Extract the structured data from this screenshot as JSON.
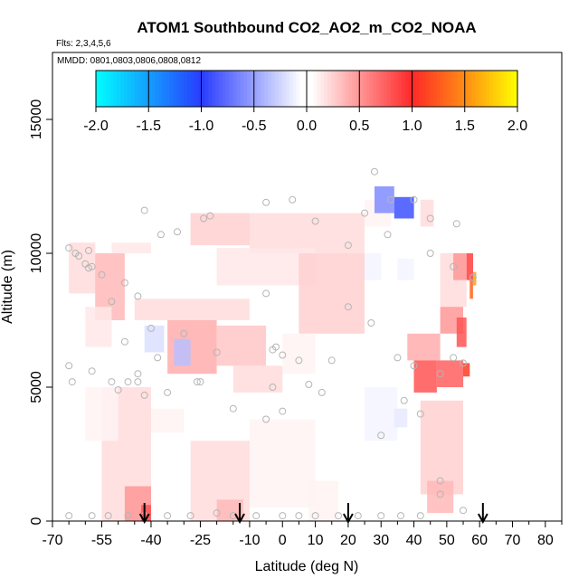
{
  "chart_data": {
    "type": "heatmap",
    "title": "ATOM1 Southbound CO2_AO2_m_CO2_NOAA",
    "flights_label": "Flts: 2,3,4,5,6",
    "mmdd_label": "MMDD: 0801,0803,0806,0808,0812",
    "xlabel": "Latitude (deg N)",
    "ylabel": "Altitude (m)",
    "xlim": [
      -70,
      85
    ],
    "ylim": [
      0,
      17500
    ],
    "x_ticks": [
      -70,
      -55,
      -40,
      -25,
      -10,
      0,
      10,
      20,
      30,
      40,
      50,
      60,
      70,
      80
    ],
    "y_ticks": [
      0,
      5000,
      10000,
      15000
    ],
    "colorbar": {
      "range": [
        -2.0,
        2.0
      ],
      "ticks": [
        "-2.0",
        "-1.5",
        "-1.0",
        "-0.5",
        "0.0",
        "0.5",
        "1.0",
        "1.5",
        "2.0"
      ]
    },
    "arrows_latitude": [
      -42,
      -13,
      20,
      61
    ],
    "cells": [
      {
        "lat": [
          -65,
          -57
        ],
        "alt": [
          8500,
          10400
        ],
        "v": 0.2
      },
      {
        "lat": [
          -57,
          -48
        ],
        "alt": [
          7500,
          10000
        ],
        "v": 0.35
      },
      {
        "lat": [
          -60,
          -52
        ],
        "alt": [
          6500,
          8000
        ],
        "v": 0.15
      },
      {
        "lat": [
          -52,
          -40
        ],
        "alt": [
          10000,
          10400
        ],
        "v": 0.15
      },
      {
        "lat": [
          -40,
          -25
        ],
        "alt": [
          9800,
          10400
        ],
        "v": 0.05
      },
      {
        "lat": [
          -28,
          -10
        ],
        "alt": [
          10300,
          11500
        ],
        "v": 0.25
      },
      {
        "lat": [
          -10,
          25
        ],
        "alt": [
          10000,
          11500
        ],
        "v": 0.2
      },
      {
        "lat": [
          25,
          33
        ],
        "alt": [
          11000,
          12000
        ],
        "v": 0.1
      },
      {
        "lat": [
          -20,
          10
        ],
        "alt": [
          8800,
          10200
        ],
        "v": 0.15
      },
      {
        "lat": [
          5,
          25
        ],
        "alt": [
          7000,
          10000
        ],
        "v": 0.25
      },
      {
        "lat": [
          -45,
          -10
        ],
        "alt": [
          7500,
          8300
        ],
        "v": 0.2
      },
      {
        "lat": [
          -35,
          -20
        ],
        "alt": [
          5500,
          7500
        ],
        "v": 0.4
      },
      {
        "lat": [
          -20,
          -5
        ],
        "alt": [
          5800,
          7300
        ],
        "v": 0.3
      },
      {
        "lat": [
          -15,
          0
        ],
        "alt": [
          4800,
          5800
        ],
        "v": 0.2
      },
      {
        "lat": [
          0,
          10
        ],
        "alt": [
          5500,
          7000
        ],
        "v": 0.1
      },
      {
        "lat": [
          -42,
          -36
        ],
        "alt": [
          6300,
          7300
        ],
        "v": -0.2
      },
      {
        "lat": [
          -33,
          -28
        ],
        "alt": [
          5800,
          6800
        ],
        "v": -0.35
      },
      {
        "lat": [
          25,
          30
        ],
        "alt": [
          9000,
          10000
        ],
        "v": -0.1
      },
      {
        "lat": [
          35,
          40
        ],
        "alt": [
          9000,
          9800
        ],
        "v": -0.1
      },
      {
        "lat": [
          28,
          34
        ],
        "alt": [
          11500,
          12500
        ],
        "v": -0.6
      },
      {
        "lat": [
          34,
          40
        ],
        "alt": [
          11300,
          12100
        ],
        "v": -0.9
      },
      {
        "lat": [
          42,
          46
        ],
        "alt": [
          11000,
          12000
        ],
        "v": 0.2
      },
      {
        "lat": [
          48,
          56
        ],
        "alt": [
          8000,
          10000
        ],
        "v": 0.2
      },
      {
        "lat": [
          52,
          56
        ],
        "alt": [
          9000,
          10000
        ],
        "v": 0.5
      },
      {
        "lat": [
          56,
          58
        ],
        "alt": [
          9000,
          10000
        ],
        "v": 0.9
      },
      {
        "lat": [
          57,
          58
        ],
        "alt": [
          8300,
          9000
        ],
        "v": 1.3
      },
      {
        "lat": [
          58,
          59
        ],
        "alt": [
          8800,
          9300
        ],
        "v": 1.6
      },
      {
        "lat": [
          48,
          55
        ],
        "alt": [
          7000,
          8000
        ],
        "v": 0.5
      },
      {
        "lat": [
          53,
          56
        ],
        "alt": [
          6500,
          7600
        ],
        "v": 0.8
      },
      {
        "lat": [
          38,
          48
        ],
        "alt": [
          6000,
          7000
        ],
        "v": 0.4
      },
      {
        "lat": [
          40,
          47
        ],
        "alt": [
          4800,
          6000
        ],
        "v": 0.8
      },
      {
        "lat": [
          47,
          55
        ],
        "alt": [
          5000,
          6000
        ],
        "v": 0.75
      },
      {
        "lat": [
          55,
          57
        ],
        "alt": [
          5400,
          5900
        ],
        "v": 1.1
      },
      {
        "lat": [
          25,
          35
        ],
        "alt": [
          3000,
          5000
        ],
        "v": -0.1
      },
      {
        "lat": [
          34,
          38
        ],
        "alt": [
          3500,
          4200
        ],
        "v": -0.15
      },
      {
        "lat": [
          42,
          55
        ],
        "alt": [
          1000,
          4500
        ],
        "v": 0.25
      },
      {
        "lat": [
          44,
          52
        ],
        "alt": [
          300,
          1500
        ],
        "v": 0.35
      },
      {
        "lat": [
          -55,
          -40
        ],
        "alt": [
          0,
          5000
        ],
        "v": 0.2
      },
      {
        "lat": [
          -48,
          -40
        ],
        "alt": [
          0,
          1300
        ],
        "v": 0.5
      },
      {
        "lat": [
          -43,
          -40
        ],
        "alt": [
          0,
          600
        ],
        "v": 0.8
      },
      {
        "lat": [
          -60,
          -50
        ],
        "alt": [
          3000,
          5000
        ],
        "v": 0.1
      },
      {
        "lat": [
          -40,
          -30
        ],
        "alt": [
          3300,
          4200
        ],
        "v": 0.1
      },
      {
        "lat": [
          -28,
          -10
        ],
        "alt": [
          0,
          3000
        ],
        "v": 0.2
      },
      {
        "lat": [
          -20,
          -12
        ],
        "alt": [
          0,
          800
        ],
        "v": 0.35
      },
      {
        "lat": [
          -10,
          10
        ],
        "alt": [
          500,
          3800
        ],
        "v": 0.1
      },
      {
        "lat": [
          8,
          17
        ],
        "alt": [
          0,
          1500
        ],
        "v": 0.1
      }
    ],
    "samples": [
      [
        -65,
        10200
      ],
      [
        -63,
        10000
      ],
      [
        -60,
        9600
      ],
      [
        -59,
        9450
      ],
      [
        -55,
        9200
      ],
      [
        -52,
        8200
      ],
      [
        -48,
        8900
      ],
      [
        -44,
        8400
      ],
      [
        -42,
        11600
      ],
      [
        -37,
        10700
      ],
      [
        -32,
        10800
      ],
      [
        -24,
        11300
      ],
      [
        -22,
        11400
      ],
      [
        -5,
        11900
      ],
      [
        3,
        12000
      ],
      [
        10,
        11200
      ],
      [
        20,
        10300
      ],
      [
        25,
        11500
      ],
      [
        32,
        10700
      ],
      [
        33,
        12000
      ],
      [
        28,
        13050
      ],
      [
        40,
        12000
      ],
      [
        45,
        11300
      ],
      [
        53,
        11100
      ],
      [
        58,
        9100
      ],
      [
        52,
        9500
      ],
      [
        45,
        10000
      ],
      [
        -48,
        6700
      ],
      [
        -40,
        7200
      ],
      [
        -38,
        6100
      ],
      [
        -30,
        7000
      ],
      [
        -25,
        5200
      ],
      [
        -20,
        6300
      ],
      [
        -5,
        8500
      ],
      [
        -3,
        6400
      ],
      [
        0,
        6200
      ],
      [
        5,
        6000
      ],
      [
        15,
        6000
      ],
      [
        27,
        7400
      ],
      [
        35,
        6100
      ],
      [
        40,
        5800
      ],
      [
        48,
        5500
      ],
      [
        52,
        6100
      ],
      [
        55,
        5900
      ],
      [
        -65,
        5800
      ],
      [
        -64,
        5200
      ],
      [
        -58,
        5600
      ],
      [
        -52,
        5200
      ],
      [
        -50,
        4900
      ],
      [
        -47,
        5200
      ],
      [
        -44,
        5200
      ],
      [
        -42,
        4700
      ],
      [
        -35,
        4800
      ],
      [
        -15,
        4200
      ],
      [
        -5,
        3800
      ],
      [
        0,
        4100
      ],
      [
        8,
        5100
      ],
      [
        12,
        4800
      ],
      [
        20,
        8000
      ],
      [
        30,
        3200
      ],
      [
        48,
        1500
      ],
      [
        -65,
        200
      ],
      [
        -58,
        200
      ],
      [
        -53,
        200
      ],
      [
        -47,
        200
      ],
      [
        -42,
        200
      ],
      [
        -35,
        200
      ],
      [
        -28,
        200
      ],
      [
        -20,
        300
      ],
      [
        -15,
        200
      ],
      [
        -8,
        200
      ],
      [
        0,
        200
      ],
      [
        5,
        200
      ],
      [
        10,
        200
      ],
      [
        17,
        200
      ],
      [
        23,
        200
      ],
      [
        30,
        200
      ],
      [
        36,
        200
      ],
      [
        42,
        200
      ],
      [
        48,
        1000
      ],
      [
        55,
        400
      ],
      [
        -62,
        9900
      ],
      [
        -59,
        10100
      ],
      [
        -58,
        9500
      ],
      [
        -26,
        5200
      ],
      [
        -3,
        5000
      ],
      [
        37,
        4500
      ],
      [
        42,
        4000
      ],
      [
        -2,
        6500
      ],
      [
        -44,
        5500
      ]
    ]
  }
}
